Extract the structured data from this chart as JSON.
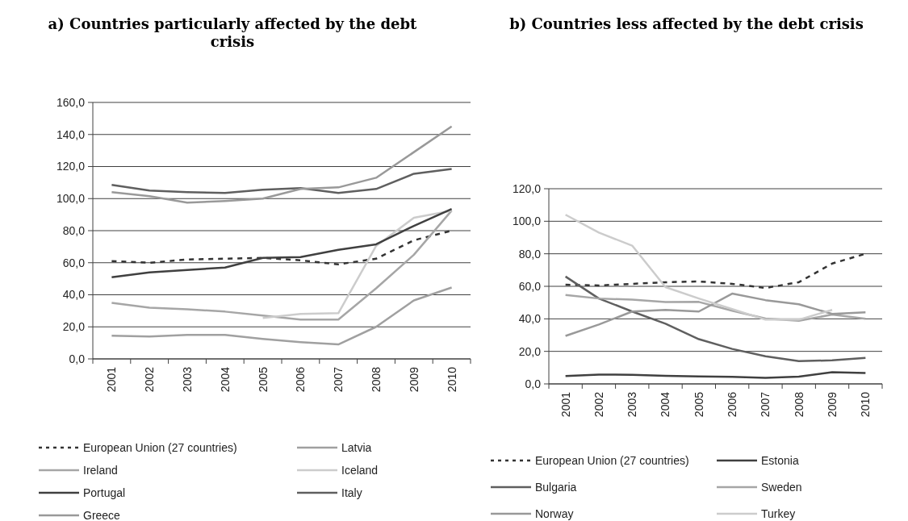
{
  "chart_data": [
    {
      "type": "line",
      "title": "a) Countries particularly affected by the debt crisis",
      "categories": [
        "2001",
        "2002",
        "2003",
        "2004",
        "2005",
        "2006",
        "2007",
        "2008",
        "2009",
        "2010"
      ],
      "series": [
        {
          "name": "European Union (27 countries)",
          "color": "#333333",
          "line_style": "dashed",
          "values": [
            61,
            60,
            62,
            62.5,
            63,
            61.5,
            59,
            62.5,
            74,
            80
          ]
        },
        {
          "name": "Latvia",
          "color": "#a0a0a0",
          "values": [
            14.5,
            14,
            15,
            15,
            12.5,
            10.5,
            9,
            20,
            36.5,
            44.5
          ]
        },
        {
          "name": "Ireland",
          "color": "#a6a6a6",
          "values": [
            35,
            32,
            31,
            29.5,
            27,
            24.5,
            24.5,
            44,
            65,
            92.5
          ]
        },
        {
          "name": "Iceland",
          "color": "#cccccc",
          "values": [
            null,
            null,
            null,
            null,
            25.5,
            28,
            28.5,
            70.5,
            88,
            92.5
          ]
        },
        {
          "name": "Portugal",
          "color": "#404040",
          "values": [
            51,
            54,
            55.5,
            57,
            63,
            63.5,
            68,
            71.5,
            83,
            93.5
          ]
        },
        {
          "name": "Italy",
          "color": "#5f5f5f",
          "values": [
            108.5,
            105,
            104,
            103.5,
            105.5,
            106.5,
            103.5,
            106,
            115.5,
            118.5
          ]
        },
        {
          "name": "Greece",
          "color": "#999999",
          "values": [
            104,
            101.5,
            97.5,
            98.5,
            100,
            106,
            107,
            113,
            129,
            145
          ]
        }
      ],
      "ylim": [
        0,
        160
      ],
      "yticks": [
        {
          "value": 0,
          "label": "0,0"
        },
        {
          "value": 20,
          "label": "20,0"
        },
        {
          "value": 40,
          "label": "40,0"
        },
        {
          "value": 60,
          "label": "60,0"
        },
        {
          "value": 80,
          "label": "80,0"
        },
        {
          "value": 100,
          "label": "100,0"
        },
        {
          "value": 120,
          "label": "120,0"
        },
        {
          "value": 140,
          "label": "140,0"
        },
        {
          "value": 160,
          "label": "160,0"
        }
      ],
      "grid": "y",
      "legend": "bottom"
    },
    {
      "type": "line",
      "title": "b) Countries less affected by the debt crisis",
      "categories": [
        "2001",
        "2002",
        "2003",
        "2004",
        "2005",
        "2006",
        "2007",
        "2008",
        "2009",
        "2010"
      ],
      "series": [
        {
          "name": "European Union (27 countries)",
          "color": "#333333",
          "line_style": "dashed",
          "values": [
            61,
            60.5,
            61.5,
            62.5,
            63,
            61.5,
            59,
            62.5,
            74,
            80
          ]
        },
        {
          "name": "Estonia",
          "color": "#404040",
          "values": [
            4.8,
            5.7,
            5.6,
            5,
            4.6,
            4.4,
            3.7,
            4.5,
            7.2,
            6.7
          ]
        },
        {
          "name": "Bulgaria",
          "color": "#5f5f5f",
          "values": [
            66,
            52.5,
            44.5,
            37,
            27.5,
            21.5,
            17,
            14,
            14.5,
            16
          ]
        },
        {
          "name": "Sweden",
          "color": "#a6a6a6",
          "values": [
            54.7,
            52.5,
            51.8,
            50.3,
            50.4,
            45,
            40.2,
            38.8,
            42.6,
            40
          ]
        },
        {
          "name": "Norway",
          "color": "#999999",
          "values": [
            29.5,
            36.5,
            44.5,
            45.5,
            44.5,
            55.5,
            51.5,
            49,
            43,
            44
          ]
        },
        {
          "name": "Turkey",
          "color": "#cccccc",
          "values": [
            104,
            93,
            85,
            59.5,
            52.5,
            46,
            39.5,
            39.5,
            45.5,
            null
          ]
        }
      ],
      "ylim": [
        0,
        120
      ],
      "yticks": [
        {
          "value": 0,
          "label": "0,0"
        },
        {
          "value": 20,
          "label": "20,0"
        },
        {
          "value": 40,
          "label": "40,0"
        },
        {
          "value": 60,
          "label": "60,0"
        },
        {
          "value": 80,
          "label": "80,0"
        },
        {
          "value": 100,
          "label": "100,0"
        },
        {
          "value": 120,
          "label": "120,0"
        }
      ],
      "grid": "y",
      "legend": "bottom"
    }
  ]
}
